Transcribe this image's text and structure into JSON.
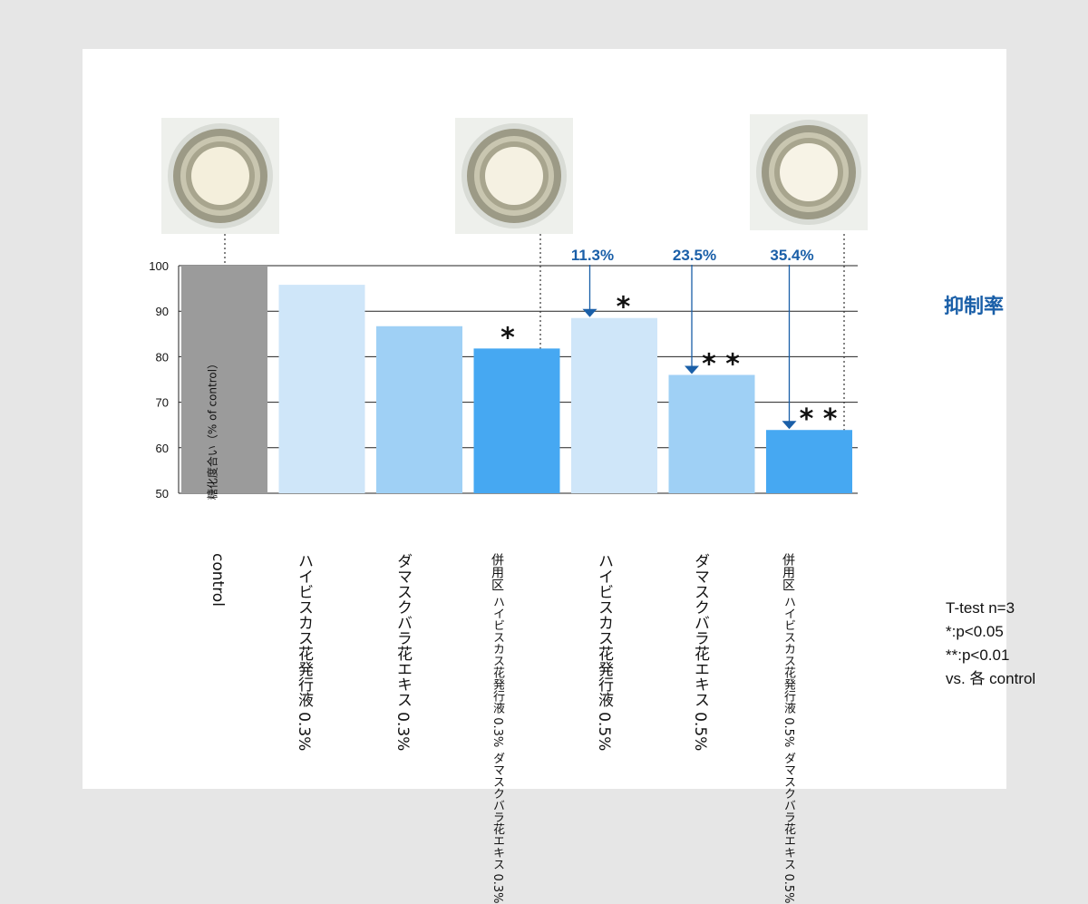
{
  "colors": {
    "control": "#9b9b9b",
    "light": "#cfe6f9",
    "mid": "#9fd0f5",
    "dark": "#46a8f2",
    "annotation": "#1a5fa8"
  },
  "icons": [
    "well-photo-control",
    "well-photo-combo-03",
    "well-photo-combo-05"
  ],
  "chart_data": {
    "type": "bar",
    "ylabel": "糖化度合い（% of control）",
    "ylim": [
      50,
      100
    ],
    "yticks": [
      50,
      60,
      70,
      80,
      90,
      100
    ],
    "categories": [
      {
        "lines": [
          "control"
        ],
        "value": 100,
        "color": "control",
        "sig": ""
      },
      {
        "lines": [
          "ハイビスカス花発行液",
          "0.3%"
        ],
        "value": 95.8,
        "color": "light",
        "sig": ""
      },
      {
        "lines": [
          "ダマスクバラ花エキス",
          "0.3%"
        ],
        "value": 86.7,
        "color": "mid",
        "sig": ""
      },
      {
        "lines": [
          "併用区",
          "ハイビスカス花発行液 0.3%",
          "ダマスクバラ花エキス 0.3%"
        ],
        "value": 81.8,
        "color": "dark",
        "sig": "*"
      },
      {
        "lines": [
          "ハイビスカス花発行液",
          "0.5%"
        ],
        "value": 88.5,
        "color": "light",
        "sig": "*"
      },
      {
        "lines": [
          "ダマスクバラ花エキス",
          "0.5%"
        ],
        "value": 76.0,
        "color": "mid",
        "sig": "* *"
      },
      {
        "lines": [
          "併用区",
          "ハイビスカス花発行液 0.5%",
          "ダマスクバラ花エキス 0.5%"
        ],
        "value": 63.9,
        "color": "dark",
        "sig": "* *"
      }
    ],
    "inhibition_title": "抑制率",
    "inhibition": [
      {
        "bar": 4,
        "label": "11.3%"
      },
      {
        "bar": 5,
        "label": "23.5%"
      },
      {
        "bar": 6,
        "label": "35.4%"
      }
    ],
    "photos_over_bars": [
      0,
      3,
      6
    ]
  },
  "legend": {
    "line1": "T-test n=3",
    "line2": "*:p<0.05",
    "line3": "**:p<0.01",
    "line4": "vs. 各 control"
  }
}
